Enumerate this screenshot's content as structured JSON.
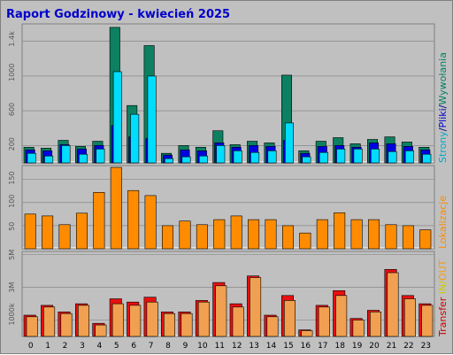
{
  "chart_data": {
    "title": "Raport Godzinowy -  kwiecień 2025",
    "hours": [
      "0",
      "1",
      "2",
      "3",
      "4",
      "5",
      "6",
      "7",
      "8",
      "9",
      "10",
      "11",
      "12",
      "13",
      "14",
      "15",
      "16",
      "17",
      "18",
      "19",
      "20",
      "21",
      "22",
      "23"
    ],
    "panels": [
      {
        "type": "bar",
        "ylim": [
          0,
          1600
        ],
        "yticks": [
          "200",
          "600",
          "1000",
          "1.4k"
        ],
        "ytick_values": [
          200,
          600,
          1000,
          1400
        ],
        "right_label": [
          {
            "text": "Strony",
            "color": "#00aacc"
          },
          {
            "text": "/",
            "color": "#000080"
          },
          {
            "text": "Pliki",
            "color": "#0000cc"
          },
          {
            "text": "/",
            "color": "#000080"
          },
          {
            "text": "Wywołania",
            "color": "#008060"
          }
        ],
        "series": [
          {
            "key": "hits",
            "color": "#0c8060",
            "values": [
              180,
              170,
              260,
              190,
              250,
              1560,
              660,
              1350,
              110,
              200,
              180,
              370,
              210,
              250,
              230,
              1010,
              140,
              250,
              290,
              220,
              270,
              300,
              240,
              180
            ]
          },
          {
            "key": "files",
            "color": "#0000e0",
            "values": [
              150,
              140,
              210,
              160,
              200,
              430,
              300,
              280,
              90,
              150,
              140,
              230,
              180,
              200,
              190,
              260,
              110,
              190,
              200,
              180,
              230,
              220,
              190,
              150
            ]
          },
          {
            "key": "pages",
            "color": "#00ddff",
            "values": [
              110,
              80,
              200,
              100,
              160,
              1050,
              560,
              1000,
              50,
              70,
              80,
              200,
              140,
              120,
              140,
              460,
              70,
              120,
              160,
              160,
              160,
              130,
              140,
              100
            ]
          }
        ]
      },
      {
        "type": "bar",
        "ylim": [
          0,
          180
        ],
        "yticks": [
          "50",
          "100",
          "150"
        ],
        "ytick_values": [
          50,
          100,
          150
        ],
        "right_label": [
          {
            "text": "Lokalizacje",
            "color": "#ff8c00"
          }
        ],
        "series": [
          {
            "key": "visits",
            "color": "#ff8c00",
            "values": [
              75,
              71,
              52,
              77,
              122,
              176,
              126,
              115,
              50,
              60,
              52,
              63,
              71,
              63,
              63,
              50,
              34,
              63,
              78,
              63,
              63,
              52,
              50,
              41
            ]
          }
        ]
      },
      {
        "type": "bar",
        "ylim": [
          0,
          5200000
        ],
        "yticks": [
          "1000k",
          "3M",
          "5M"
        ],
        "ytick_values": [
          1000000,
          3000000,
          5000000
        ],
        "right_label": [
          {
            "text": "Transfer",
            "color": "#cc0000"
          },
          {
            "text": " IN/",
            "color": "#cccc00"
          },
          {
            "text": "OUT",
            "color": "#ff9900"
          }
        ],
        "series": [
          {
            "key": "in",
            "color": "#e81010",
            "values": [
              1300000,
              1900000,
              1500000,
              2000000,
              800000,
              2300000,
              2100000,
              2400000,
              1500000,
              1500000,
              2200000,
              3300000,
              2000000,
              3700000,
              1300000,
              2500000,
              400000,
              1900000,
              2800000,
              1100000,
              1600000,
              4100000,
              2500000,
              2000000
            ]
          },
          {
            "key": "out",
            "color": "#f0a050",
            "values": [
              1200000,
              1800000,
              1400000,
              1900000,
              700000,
              2000000,
              1900000,
              2100000,
              1400000,
              1400000,
              2100000,
              3100000,
              1800000,
              3600000,
              1200000,
              2200000,
              350000,
              1800000,
              2500000,
              1000000,
              1500000,
              3900000,
              2300000,
              1900000
            ]
          }
        ]
      }
    ]
  }
}
